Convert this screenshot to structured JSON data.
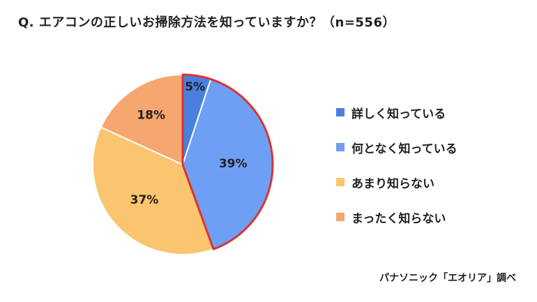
{
  "chart_data": {
    "type": "pie",
    "title": "Q. エアコンの正しいお掃除方法を知っていますか？（n=556）",
    "categories": [
      "詳しく知っている",
      "何となく知っている",
      "あまり知らない",
      "まったく知らない"
    ],
    "values": [
      5,
      39,
      37,
      18
    ],
    "value_labels": [
      "5%",
      "39%",
      "37%",
      "18%"
    ],
    "colors": [
      "#4a7fe0",
      "#6f9ff5",
      "#fbc46e",
      "#f6a66f"
    ],
    "highlight_color": "#d93434",
    "legend_position": "right",
    "source": "パナソニック「エオリア」調べ"
  }
}
